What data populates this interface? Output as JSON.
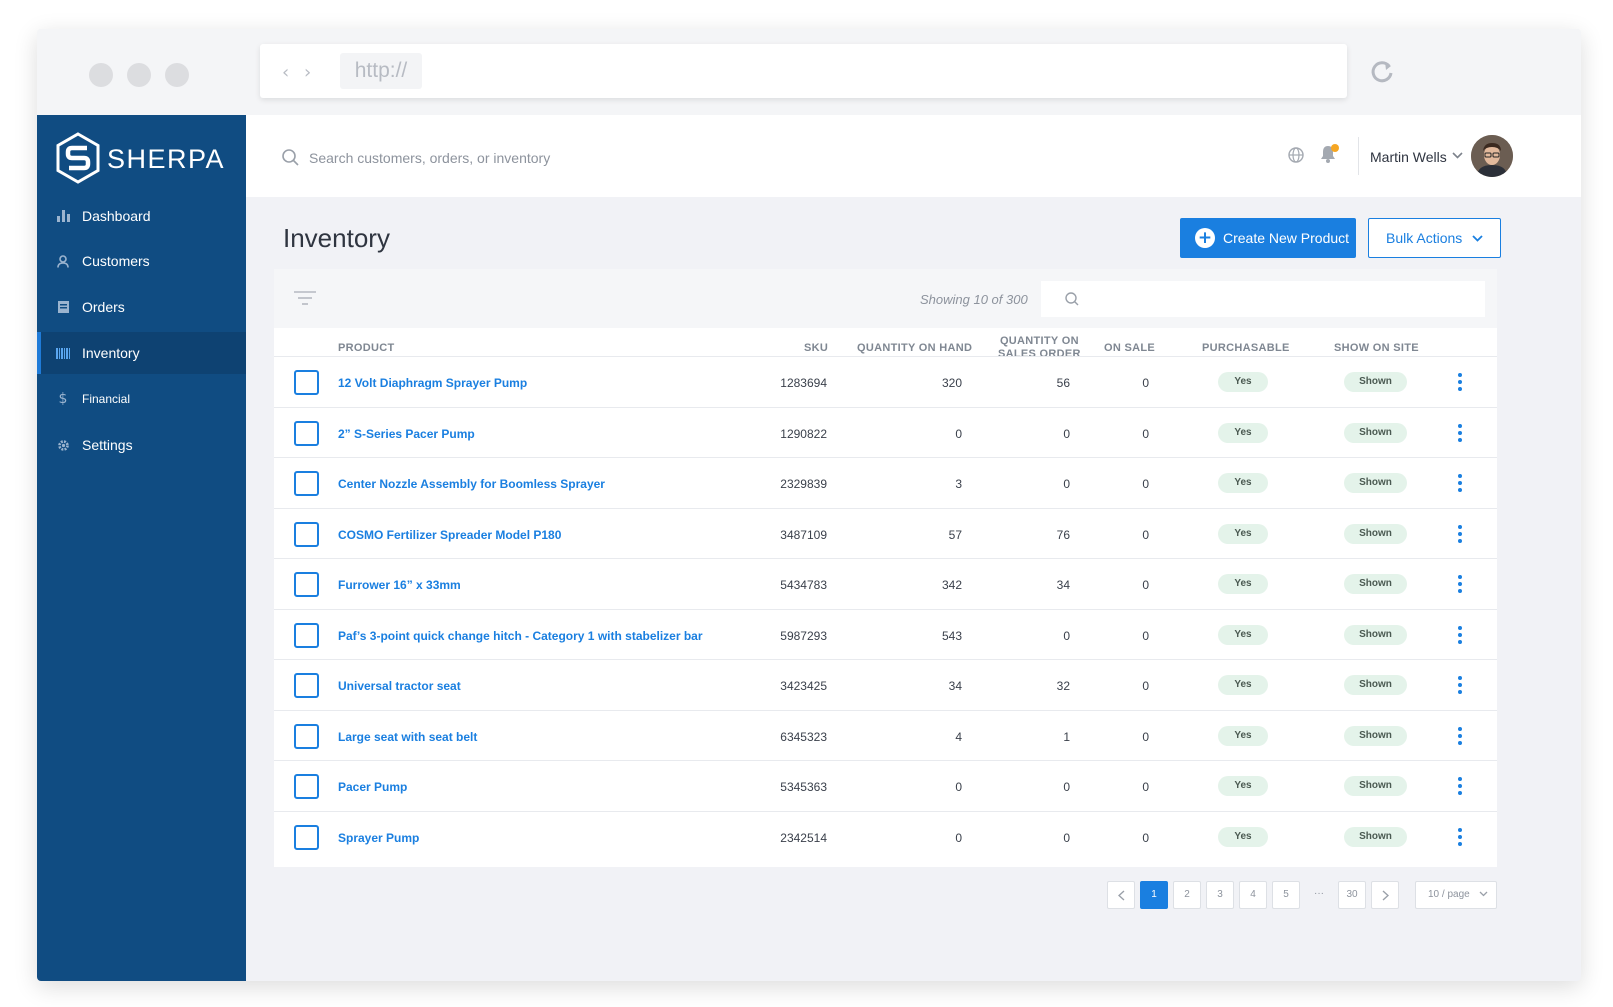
{
  "browser": {
    "url": "http://"
  },
  "brand": {
    "name": "SHERPA"
  },
  "sidebar": {
    "items": [
      {
        "label": "Dashboard",
        "icon": "bar-chart-icon"
      },
      {
        "label": "Customers",
        "icon": "user-icon"
      },
      {
        "label": "Orders",
        "icon": "receipt-icon"
      },
      {
        "label": "Inventory",
        "icon": "barcode-icon",
        "active": true
      },
      {
        "label": "Financial",
        "icon": "dollar-icon"
      },
      {
        "label": "Settings",
        "icon": "gear-icon"
      }
    ]
  },
  "header": {
    "search_placeholder": "Search customers, orders, or inventory",
    "user_name": "Martin Wells"
  },
  "page": {
    "title": "Inventory",
    "create_button": "Create New Product",
    "bulk_button": "Bulk Actions",
    "showing": "Showing 10 of 300"
  },
  "table": {
    "columns": {
      "product": "PRODUCT",
      "sku": "SKU",
      "qoh": "QUANTITY ON HAND",
      "qso_line1": "QUANTITY ON",
      "qso_line2": "SALES ORDER",
      "on_sale": "ON SALE",
      "purchasable": "PURCHASABLE",
      "show_on_site": "SHOW ON SITE"
    },
    "rows": [
      {
        "product": "12 Volt Diaphragm Sprayer Pump",
        "sku": "1283694",
        "qoh": "320",
        "qso": "56",
        "on_sale": "0",
        "purchasable": "Yes",
        "show": "Shown"
      },
      {
        "product": "2” S-Series Pacer Pump",
        "sku": "1290822",
        "qoh": "0",
        "qso": "0",
        "on_sale": "0",
        "purchasable": "Yes",
        "show": "Shown"
      },
      {
        "product": "Center Nozzle Assembly for Boomless Sprayer",
        "sku": "2329839",
        "qoh": "3",
        "qso": "0",
        "on_sale": "0",
        "purchasable": "Yes",
        "show": "Shown"
      },
      {
        "product": "COSMO Fertilizer Spreader Model P180",
        "sku": "3487109",
        "qoh": "57",
        "qso": "76",
        "on_sale": "0",
        "purchasable": "Yes",
        "show": "Shown"
      },
      {
        "product": "Furrower 16” x 33mm",
        "sku": "5434783",
        "qoh": "342",
        "qso": "34",
        "on_sale": "0",
        "purchasable": "Yes",
        "show": "Shown"
      },
      {
        "product": "Paf’s 3-point quick change hitch - Category 1 with stabelizer bar",
        "sku": "5987293",
        "qoh": "543",
        "qso": "0",
        "on_sale": "0",
        "purchasable": "Yes",
        "show": "Shown"
      },
      {
        "product": "Universal tractor seat",
        "sku": "3423425",
        "qoh": "34",
        "qso": "32",
        "on_sale": "0",
        "purchasable": "Yes",
        "show": "Shown"
      },
      {
        "product": "Large seat with seat belt",
        "sku": "6345323",
        "qoh": "4",
        "qso": "1",
        "on_sale": "0",
        "purchasable": "Yes",
        "show": "Shown"
      },
      {
        "product": "Pacer Pump",
        "sku": "5345363",
        "qoh": "0",
        "qso": "0",
        "on_sale": "0",
        "purchasable": "Yes",
        "show": "Shown"
      },
      {
        "product": "Sprayer Pump",
        "sku": "2342514",
        "qoh": "0",
        "qso": "0",
        "on_sale": "0",
        "purchasable": "Yes",
        "show": "Shown"
      }
    ]
  },
  "pagination": {
    "pages": [
      "1",
      "2",
      "3",
      "4",
      "5"
    ],
    "ellipsis": "···",
    "last": "30",
    "current": "1",
    "per_page": "10 / page"
  },
  "colors": {
    "sidebar": "#104c82",
    "accent": "#1a7fe0",
    "badge_bg": "#e4f3ea",
    "notification": "#f5a623"
  }
}
